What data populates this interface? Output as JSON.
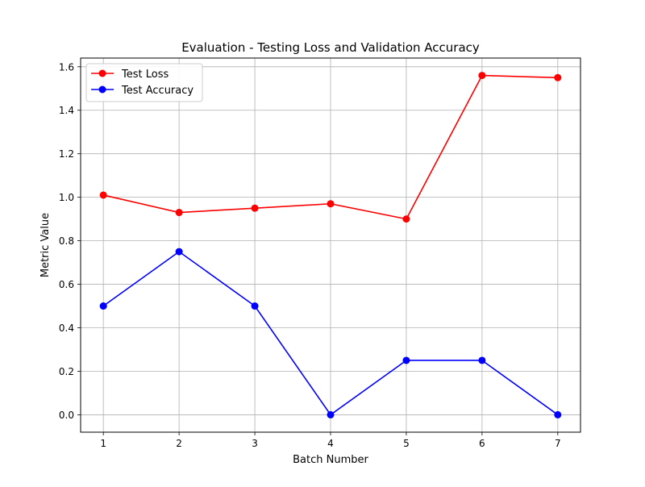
{
  "chart_data": {
    "type": "line",
    "title": "Evaluation - Testing Loss and Validation Accuracy",
    "xlabel": "Batch Number",
    "ylabel": "Metric Value",
    "x": [
      1,
      2,
      3,
      4,
      5,
      6,
      7
    ],
    "xlim": [
      0.7,
      7.3
    ],
    "ylim": [
      -0.08,
      1.64
    ],
    "xticks": [
      1,
      2,
      3,
      4,
      5,
      6,
      7
    ],
    "xtick_labels": [
      "1",
      "2",
      "3",
      "4",
      "5",
      "6",
      "7"
    ],
    "yticks": [
      0.0,
      0.2,
      0.4,
      0.6,
      0.8,
      1.0,
      1.2,
      1.4,
      1.6
    ],
    "ytick_labels": [
      "0.0",
      "0.2",
      "0.4",
      "0.6",
      "0.8",
      "1.0",
      "1.2",
      "1.4",
      "1.6"
    ],
    "grid": true,
    "legend_position": "upper-left",
    "series": [
      {
        "name": "Test Loss",
        "color": "#ff0000",
        "marker": "circle",
        "values": [
          1.01,
          0.93,
          0.95,
          0.97,
          0.9,
          1.56,
          1.55
        ]
      },
      {
        "name": "Test Accuracy",
        "color": "#0000ff",
        "marker": "circle",
        "values": [
          0.5,
          0.75,
          0.5,
          0.0,
          0.25,
          0.25,
          0.0
        ]
      }
    ]
  }
}
